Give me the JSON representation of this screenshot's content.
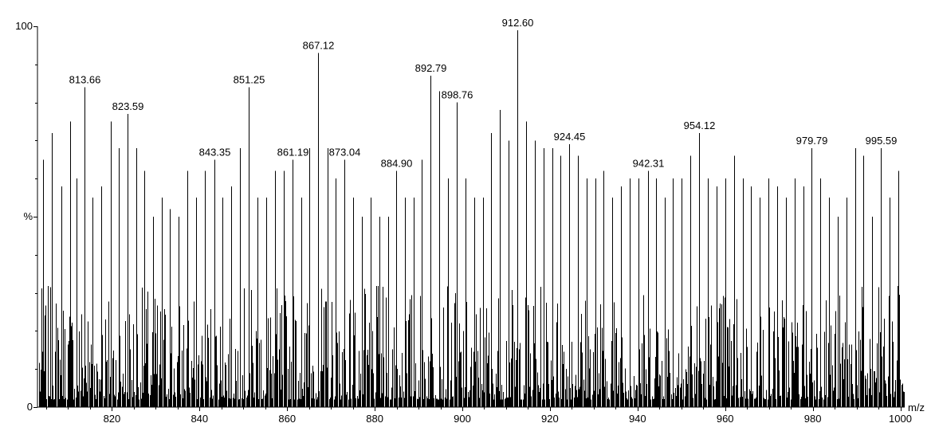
{
  "chart_data": {
    "type": "bar",
    "title": "",
    "xlabel": "m/z",
    "ylabel": "%",
    "xlim": [
      803,
      1001
    ],
    "ylim": [
      0,
      100
    ],
    "x_ticks": [
      820,
      840,
      860,
      880,
      900,
      920,
      940,
      960,
      980,
      1000
    ],
    "y_ticks": [
      {
        "value": 0,
        "label": "0"
      },
      {
        "value": 50,
        "label": "%"
      },
      {
        "value": 100,
        "label": "100"
      }
    ],
    "grid": false,
    "legend": "none",
    "series": [
      {
        "values": [
          {
            "x": 813.66,
            "y": 84,
            "label": "813.66"
          },
          {
            "x": 823.59,
            "y": 77,
            "label": "823.59"
          },
          {
            "x": 843.35,
            "y": 65,
            "label": "843.35"
          },
          {
            "x": 851.25,
            "y": 84,
            "label": "851.25"
          },
          {
            "x": 861.19,
            "y": 65,
            "label": "861.19"
          },
          {
            "x": 867.12,
            "y": 93,
            "label": "867.12"
          },
          {
            "x": 873.04,
            "y": 65,
            "label": "873.04"
          },
          {
            "x": 884.9,
            "y": 62,
            "label": "884.90"
          },
          {
            "x": 892.79,
            "y": 87,
            "label": "892.79"
          },
          {
            "x": 898.76,
            "y": 80,
            "label": "898.76"
          },
          {
            "x": 912.6,
            "y": 99,
            "label": "912.60"
          },
          {
            "x": 924.45,
            "y": 69,
            "label": "924.45"
          },
          {
            "x": 942.31,
            "y": 62,
            "label": "942.31"
          },
          {
            "x": 954.12,
            "y": 72,
            "label": "954.12"
          },
          {
            "x": 979.79,
            "y": 68,
            "label": "979.79"
          },
          {
            "x": 995.59,
            "y": 68,
            "label": "995.59"
          },
          {
            "x": 804.2,
            "y": 65
          },
          {
            "x": 806.3,
            "y": 72
          },
          {
            "x": 808.5,
            "y": 58
          },
          {
            "x": 810.4,
            "y": 75
          },
          {
            "x": 812.0,
            "y": 60
          },
          {
            "x": 815.6,
            "y": 55
          },
          {
            "x": 817.5,
            "y": 58
          },
          {
            "x": 819.7,
            "y": 75
          },
          {
            "x": 821.6,
            "y": 68
          },
          {
            "x": 825.5,
            "y": 68
          },
          {
            "x": 827.4,
            "y": 62
          },
          {
            "x": 829.3,
            "y": 50
          },
          {
            "x": 831.4,
            "y": 55
          },
          {
            "x": 833.2,
            "y": 52
          },
          {
            "x": 835.2,
            "y": 50
          },
          {
            "x": 837.2,
            "y": 62
          },
          {
            "x": 839.3,
            "y": 55
          },
          {
            "x": 841.3,
            "y": 62
          },
          {
            "x": 845.3,
            "y": 55
          },
          {
            "x": 847.3,
            "y": 58
          },
          {
            "x": 849.2,
            "y": 68
          },
          {
            "x": 853.2,
            "y": 55
          },
          {
            "x": 855.2,
            "y": 55
          },
          {
            "x": 857.3,
            "y": 62
          },
          {
            "x": 859.2,
            "y": 62
          },
          {
            "x": 863.2,
            "y": 55
          },
          {
            "x": 865.1,
            "y": 68
          },
          {
            "x": 869.2,
            "y": 68
          },
          {
            "x": 871.1,
            "y": 60
          },
          {
            "x": 875.0,
            "y": 55
          },
          {
            "x": 877.0,
            "y": 50
          },
          {
            "x": 879.0,
            "y": 55
          },
          {
            "x": 881.0,
            "y": 50
          },
          {
            "x": 883.0,
            "y": 50
          },
          {
            "x": 886.9,
            "y": 55
          },
          {
            "x": 888.9,
            "y": 55
          },
          {
            "x": 890.8,
            "y": 65
          },
          {
            "x": 894.8,
            "y": 83
          },
          {
            "x": 896.8,
            "y": 60
          },
          {
            "x": 900.7,
            "y": 60
          },
          {
            "x": 902.7,
            "y": 55
          },
          {
            "x": 904.7,
            "y": 55
          },
          {
            "x": 906.6,
            "y": 72
          },
          {
            "x": 908.6,
            "y": 78
          },
          {
            "x": 910.6,
            "y": 70
          },
          {
            "x": 914.5,
            "y": 75
          },
          {
            "x": 916.5,
            "y": 70
          },
          {
            "x": 918.5,
            "y": 68
          },
          {
            "x": 920.5,
            "y": 68
          },
          {
            "x": 922.4,
            "y": 66
          },
          {
            "x": 926.4,
            "y": 66
          },
          {
            "x": 928.4,
            "y": 60
          },
          {
            "x": 930.3,
            "y": 60
          },
          {
            "x": 932.3,
            "y": 62
          },
          {
            "x": 934.3,
            "y": 55
          },
          {
            "x": 936.3,
            "y": 58
          },
          {
            "x": 938.2,
            "y": 60
          },
          {
            "x": 940.2,
            "y": 60
          },
          {
            "x": 944.2,
            "y": 60
          },
          {
            "x": 946.2,
            "y": 55
          },
          {
            "x": 948.1,
            "y": 60
          },
          {
            "x": 950.1,
            "y": 60
          },
          {
            "x": 952.1,
            "y": 66
          },
          {
            "x": 956.1,
            "y": 60
          },
          {
            "x": 958.0,
            "y": 58
          },
          {
            "x": 960.0,
            "y": 60
          },
          {
            "x": 962.0,
            "y": 66
          },
          {
            "x": 964.0,
            "y": 60
          },
          {
            "x": 965.9,
            "y": 58
          },
          {
            "x": 967.9,
            "y": 55
          },
          {
            "x": 969.9,
            "y": 60
          },
          {
            "x": 971.9,
            "y": 58
          },
          {
            "x": 973.8,
            "y": 55
          },
          {
            "x": 975.8,
            "y": 60
          },
          {
            "x": 977.8,
            "y": 58
          },
          {
            "x": 981.8,
            "y": 60
          },
          {
            "x": 983.7,
            "y": 55
          },
          {
            "x": 985.7,
            "y": 50
          },
          {
            "x": 987.7,
            "y": 55
          },
          {
            "x": 989.7,
            "y": 68
          },
          {
            "x": 991.6,
            "y": 66
          },
          {
            "x": 993.6,
            "y": 50
          },
          {
            "x": 997.6,
            "y": 55
          },
          {
            "x": 999.5,
            "y": 62
          }
        ]
      }
    ],
    "baseline_noise": {
      "seed": 7,
      "spacing": 0.22,
      "min": 2,
      "max": 32
    }
  }
}
